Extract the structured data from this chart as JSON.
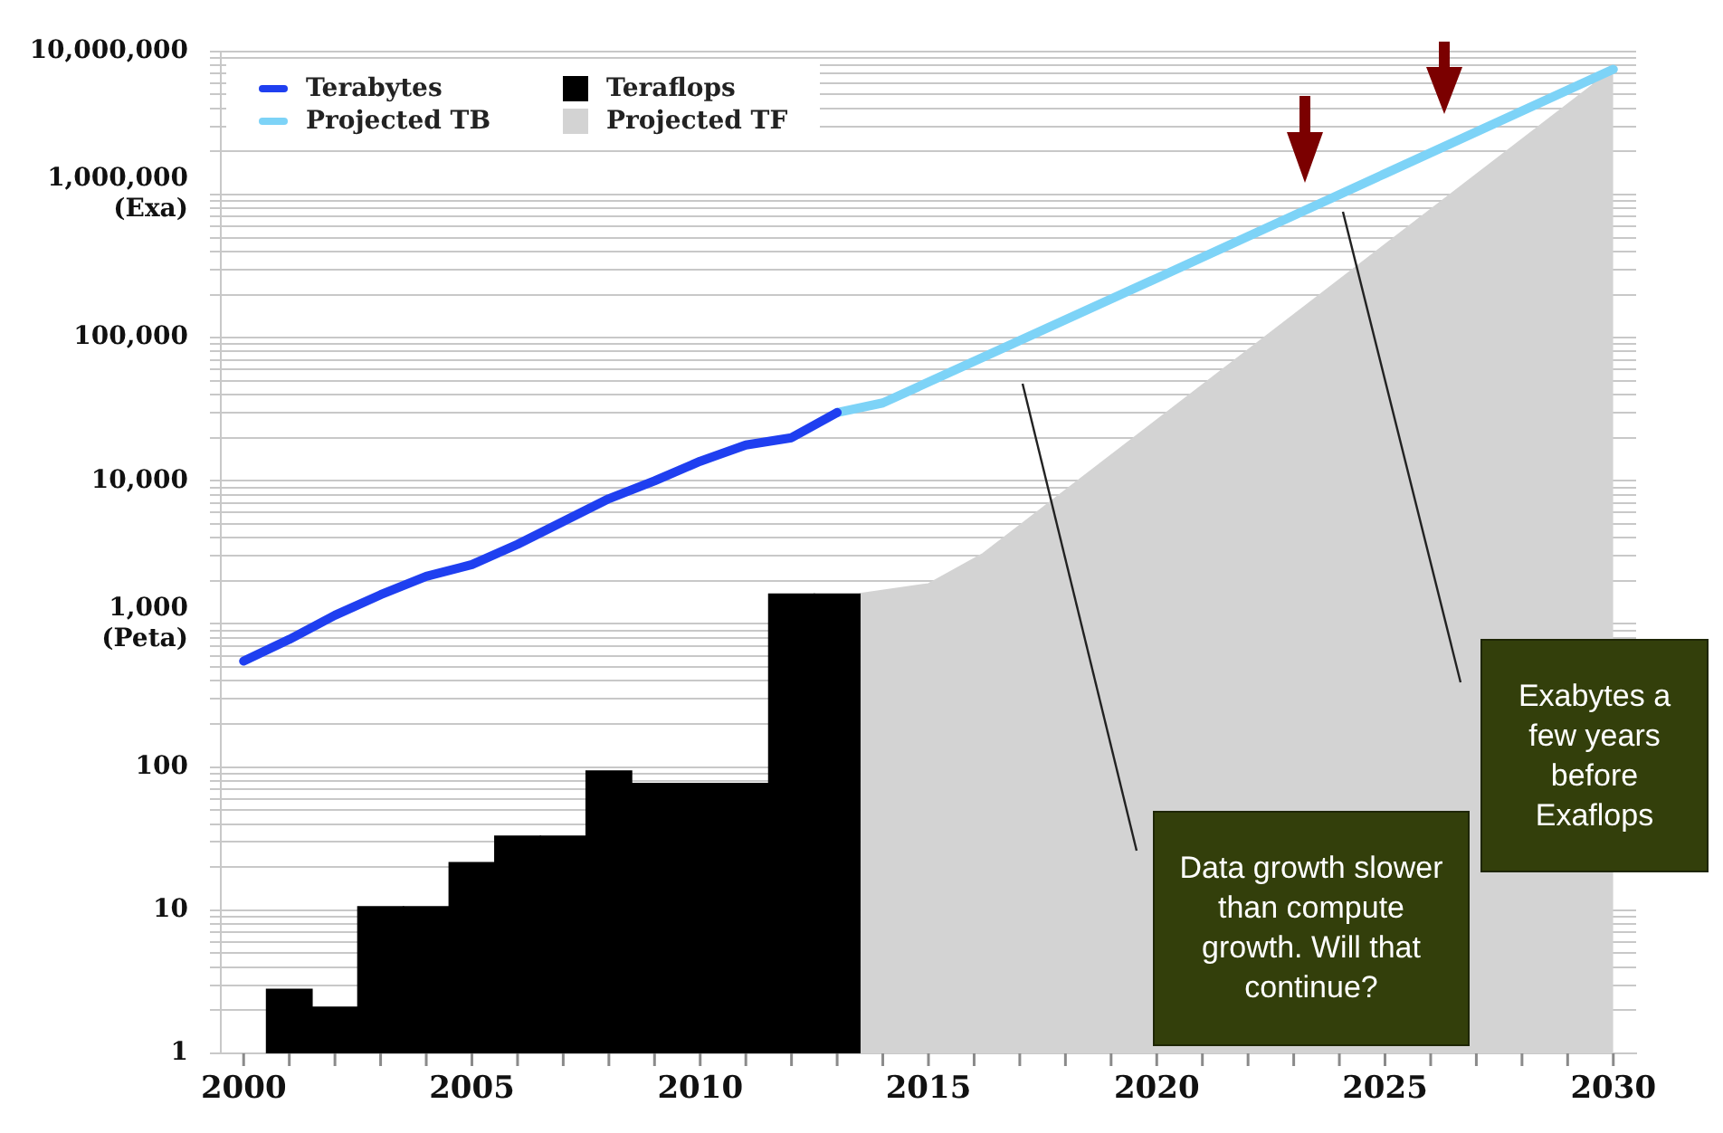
{
  "chart_data": {
    "type": "bar",
    "log": true,
    "grid": "y",
    "legend": "top left",
    "marker": "none",
    "line_style": "solid",
    "xlim": [
      1999.5,
      2030.5
    ],
    "xticks": [
      2000,
      {
        "value": 2001,
        "label": null
      },
      {
        "value": 2002,
        "label": null
      },
      {
        "value": 2003,
        "label": null
      },
      {
        "value": 2004,
        "label": null
      },
      2005,
      {
        "value": 2006,
        "label": null
      },
      {
        "value": 2007,
        "label": null
      },
      {
        "value": 2008,
        "label": null
      },
      {
        "value": 2009,
        "label": null
      },
      2010,
      {
        "value": 2011,
        "label": null
      },
      {
        "value": 2012,
        "label": null
      },
      {
        "value": 2013,
        "label": null
      },
      {
        "value": 2014,
        "label": null
      },
      2015,
      {
        "value": 2016,
        "label": null
      },
      {
        "value": 2017,
        "label": null
      },
      {
        "value": 2018,
        "label": null
      },
      {
        "value": 2019,
        "label": null
      },
      2020,
      {
        "value": 2021,
        "label": null
      },
      {
        "value": 2022,
        "label": null
      },
      {
        "value": 2023,
        "label": null
      },
      {
        "value": 2024,
        "label": null
      },
      2025,
      {
        "value": 2026,
        "label": null
      },
      {
        "value": 2027,
        "label": null
      },
      {
        "value": 2028,
        "label": null
      },
      {
        "value": 2029,
        "label": null
      },
      2030
    ],
    "ylim": [
      1,
      10000000
    ],
    "yticks": [
      1,
      {
        "value": 2,
        "label": null
      },
      {
        "value": 3,
        "label": null
      },
      {
        "value": 4,
        "label": null
      },
      {
        "value": 5,
        "label": null
      },
      {
        "value": 6,
        "label": null
      },
      {
        "value": 7,
        "label": null
      },
      {
        "value": 8,
        "label": null
      },
      {
        "value": 9,
        "label": null
      },
      10,
      {
        "value": 20,
        "label": null
      },
      {
        "value": 30,
        "label": null
      },
      {
        "value": 40,
        "label": null
      },
      {
        "value": 50,
        "label": null
      },
      {
        "value": 60,
        "label": null
      },
      {
        "value": 70,
        "label": null
      },
      {
        "value": 80,
        "label": null
      },
      {
        "value": 90,
        "label": null
      },
      100,
      {
        "value": 200,
        "label": null
      },
      {
        "value": 300,
        "label": null
      },
      {
        "value": 400,
        "label": null
      },
      {
        "value": 500,
        "label": null
      },
      {
        "value": 600,
        "label": null
      },
      {
        "value": 700,
        "label": null
      },
      {
        "value": 800,
        "label": null
      },
      {
        "value": 900,
        "label": null
      },
      {
        "value": 1000,
        "label": "1,000 (Peta)"
      },
      {
        "value": 2000,
        "label": null
      },
      {
        "value": 3000,
        "label": null
      },
      {
        "value": 4000,
        "label": null
      },
      {
        "value": 5000,
        "label": null
      },
      {
        "value": 6000,
        "label": null
      },
      {
        "value": 7000,
        "label": null
      },
      {
        "value": 8000,
        "label": null
      },
      {
        "value": 9000,
        "label": null
      },
      {
        "value": 10000,
        "label": "10,000"
      },
      {
        "value": 20000,
        "label": null
      },
      {
        "value": 30000,
        "label": null
      },
      {
        "value": 40000,
        "label": null
      },
      {
        "value": 50000,
        "label": null
      },
      {
        "value": 60000,
        "label": null
      },
      {
        "value": 70000,
        "label": null
      },
      {
        "value": 80000,
        "label": null
      },
      {
        "value": 90000,
        "label": null
      },
      {
        "value": 100000,
        "label": "100,000"
      },
      {
        "value": 200000,
        "label": null
      },
      {
        "value": 300000,
        "label": null
      },
      {
        "value": 400000,
        "label": null
      },
      {
        "value": 500000,
        "label": null
      },
      {
        "value": 600000,
        "label": null
      },
      {
        "value": 700000,
        "label": null
      },
      {
        "value": 800000,
        "label": null
      },
      {
        "value": 900000,
        "label": null
      },
      {
        "value": 1000000,
        "label": "1,000,000 (Exa)"
      },
      {
        "value": 2000000,
        "label": null
      },
      {
        "value": 3000000,
        "label": null
      },
      {
        "value": 4000000,
        "label": null
      },
      {
        "value": 5000000,
        "label": null
      },
      {
        "value": 6000000,
        "label": null
      },
      {
        "value": 7000000,
        "label": null
      },
      {
        "value": 8000000,
        "label": null
      },
      {
        "value": 9000000,
        "label": null
      },
      {
        "value": 10000000,
        "label": "10,000,000"
      }
    ],
    "series": [
      {
        "name": "Terabytes",
        "type": "line",
        "color": "#1f3ff0",
        "x": [
          2000,
          2001,
          2002,
          2003,
          2004,
          2005,
          2006,
          2007,
          2008,
          2009,
          2010,
          2011,
          2012,
          2013
        ],
        "values": [
          550,
          780,
          1150,
          1600,
          2150,
          2600,
          3600,
          5200,
          7500,
          10000,
          13700,
          17800,
          20000,
          30000
        ]
      },
      {
        "name": "Projected TB",
        "type": "line",
        "color": "#7dd3f7",
        "x": [
          2013,
          2014,
          2020,
          2025,
          2030
        ],
        "values": [
          30000,
          35000,
          260000,
          1400000,
          7500000
        ]
      },
      {
        "name": "Teraflops",
        "color": "#000000",
        "x": [
          2001,
          2002,
          2003,
          2004,
          2005,
          2006,
          2007,
          2008,
          2009,
          2010,
          2011,
          2012,
          2013
        ],
        "values": [
          2.8,
          2.1,
          10.6,
          10.6,
          21.5,
          33,
          33,
          94,
          77,
          77,
          77,
          1620,
          1620
        ]
      },
      {
        "name": "Projected TF",
        "type": "area",
        "color": "#d3d3d3",
        "x": [
          2013.5,
          2015,
          2016.2,
          2030
        ],
        "values": [
          1620,
          1900,
          3100,
          7500000
        ]
      }
    ],
    "annotations": [
      "Data growth slower than compute growth. Will that continue?",
      "Exabytes a few years before Exaflops"
    ]
  }
}
